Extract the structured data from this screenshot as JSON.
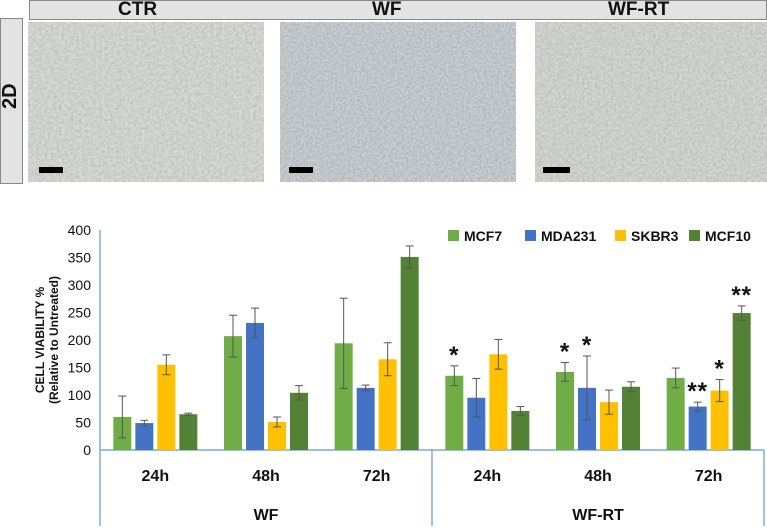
{
  "panels": {
    "labels": [
      "CTR",
      "WF",
      "WF-RT"
    ],
    "row_label": "2D"
  },
  "colors": {
    "MCF7": "#70ad47",
    "MDA231": "#4472c4",
    "SKBR3": "#ffc000",
    "MCF10": "#538135",
    "axis": "#5b9bd5"
  },
  "chart_data": {
    "type": "bar",
    "ylabel": [
      "CELL VIABILITY %",
      "(Relative to Untreated)"
    ],
    "ylim": [
      0,
      400
    ],
    "yticks": [
      0,
      50,
      100,
      150,
      200,
      250,
      300,
      350,
      400
    ],
    "groups": [
      "WF",
      "WF-RT"
    ],
    "categories": [
      "24h",
      "48h",
      "72h",
      "24h",
      "48h",
      "72h"
    ],
    "legend_position": "top-right",
    "series": [
      {
        "name": "MCF7",
        "values": [
          60,
          207,
          194,
          135,
          142,
          131
        ],
        "errors": [
          38,
          38,
          82,
          18,
          17,
          18
        ],
        "significance": [
          "",
          "",
          "",
          "*",
          "*",
          ""
        ]
      },
      {
        "name": "MDA231",
        "values": [
          49,
          231,
          113,
          95,
          113,
          79
        ],
        "errors": [
          5,
          27,
          5,
          35,
          58,
          8
        ],
        "significance": [
          "",
          "",
          "",
          "",
          "*",
          "**"
        ]
      },
      {
        "name": "SKBR3",
        "values": [
          155,
          51,
          165,
          174,
          87,
          108
        ],
        "errors": [
          18,
          9,
          30,
          27,
          22,
          20
        ],
        "significance": [
          "",
          "",
          "",
          "",
          "",
          "*"
        ]
      },
      {
        "name": "MCF10",
        "values": [
          65,
          104,
          351,
          71,
          115,
          249
        ],
        "errors": [
          2,
          13,
          20,
          8,
          9,
          13
        ],
        "significance": [
          "",
          "",
          "",
          "",
          "",
          "**"
        ]
      }
    ]
  }
}
